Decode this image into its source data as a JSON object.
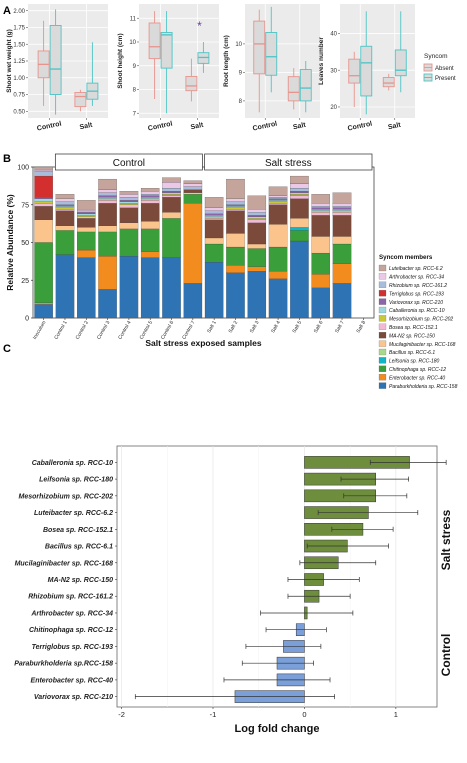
{
  "panel_labels": [
    "A",
    "B",
    "C"
  ],
  "panel_a": {
    "legend_title": "Syncom",
    "legend_items": [
      "Absent",
      "Present"
    ],
    "colors": {
      "absent": "#E8938C",
      "present": "#4DC4C4",
      "bg": "#EBEBEB"
    },
    "groups": [
      "Control",
      "Salt"
    ],
    "plots": [
      {
        "ylabel": "Shoot wet weight (g)",
        "yticks": [
          "0.50",
          "0.75",
          "1.00",
          "1.25",
          "1.50",
          "1.75",
          "2.00"
        ],
        "ylim": [
          0.4,
          2.1
        ],
        "boxes": [
          {
            "q1": 1.0,
            "med": 1.2,
            "q3": 1.4,
            "lo": 0.58,
            "hi": 1.85
          },
          {
            "q1": 0.75,
            "med": 1.13,
            "q3": 1.78,
            "lo": 0.45,
            "hi": 2.02
          },
          {
            "q1": 0.57,
            "med": 0.72,
            "q3": 0.78,
            "lo": 0.5,
            "hi": 0.82
          },
          {
            "q1": 0.68,
            "med": 0.8,
            "q3": 0.92,
            "lo": 0.58,
            "hi": 1.53
          }
        ],
        "star": null
      },
      {
        "ylabel": "Shoot height (cm)",
        "yticks": [
          "7",
          "8",
          "9",
          "10",
          "11"
        ],
        "ylim": [
          6.8,
          11.6
        ],
        "boxes": [
          {
            "q1": 9.3,
            "med": 9.8,
            "q3": 10.8,
            "lo": 7.6,
            "hi": 11.3
          },
          {
            "q1": 8.9,
            "med": 10.3,
            "q3": 10.4,
            "lo": 7.0,
            "hi": 11.3
          },
          {
            "q1": 7.95,
            "med": 8.15,
            "q3": 8.55,
            "lo": 7.5,
            "hi": 9.3
          },
          {
            "q1": 9.1,
            "med": 9.35,
            "q3": 9.55,
            "lo": 8.7,
            "hi": 10.0
          }
        ],
        "star": "*"
      },
      {
        "ylabel": "Root length (cm)",
        "yticks": [
          "8",
          "9",
          "10"
        ],
        "ylim": [
          7.4,
          11.4
        ],
        "boxes": [
          {
            "q1": 8.95,
            "med": 10.0,
            "q3": 10.8,
            "lo": 7.6,
            "hi": 11.2
          },
          {
            "q1": 8.9,
            "med": 9.55,
            "q3": 10.4,
            "lo": 8.3,
            "hi": 11.3
          },
          {
            "q1": 8.0,
            "med": 8.3,
            "q3": 8.85,
            "lo": 7.7,
            "hi": 9.15
          },
          {
            "q1": 8.0,
            "med": 8.45,
            "q3": 9.1,
            "lo": 7.6,
            "hi": 9.4
          }
        ],
        "star": null
      },
      {
        "ylabel": "Leaves number",
        "yticks": [
          "20",
          "30",
          "40"
        ],
        "ylim": [
          17,
          48
        ],
        "boxes": [
          {
            "q1": 26.5,
            "med": 28.5,
            "q3": 33,
            "lo": 20,
            "hi": 35
          },
          {
            "q1": 23,
            "med": 32,
            "q3": 36.5,
            "lo": 18,
            "hi": 46
          },
          {
            "q1": 25.5,
            "med": 26.5,
            "q3": 28,
            "lo": 24.5,
            "hi": 29
          },
          {
            "q1": 28.5,
            "med": 30,
            "q3": 35.5,
            "lo": 24,
            "hi": 46
          }
        ],
        "star": null
      }
    ]
  },
  "chart_data": {
    "type": "bar",
    "ylabel": "Relative Abundance (%)",
    "xlabel": "Salt stress exposed samples",
    "yticks": [
      "0",
      "25",
      "50",
      "75",
      "100"
    ],
    "ylim": [
      0,
      100
    ],
    "group_labels": [
      "Control",
      "Salt stress"
    ],
    "categories": [
      "Inoculum",
      "Control 1",
      "Control 2",
      "Control 3",
      "Control 4",
      "Control 5",
      "Control 6",
      "Control 7",
      "Salt 1",
      "Salt 2",
      "Salt 3",
      "Salt 4",
      "Salt 5",
      "Salt 6",
      "Salt 7",
      "Salt 8"
    ],
    "legend_title": "Syncom members",
    "series": [
      {
        "name": "Paraburkholderia sp. RCC-158",
        "color": "#2E74B5",
        "values": [
          9,
          42,
          40,
          19,
          41,
          40,
          40,
          23,
          37,
          30,
          31,
          26,
          51,
          20,
          23,
          0
        ]
      },
      {
        "name": "Enterobacter sp. RCC-40",
        "color": "#F28C1E",
        "values": [
          1,
          0,
          5,
          22,
          0,
          4,
          0,
          53,
          0,
          5,
          3,
          5,
          0,
          9,
          13,
          0
        ]
      },
      {
        "name": "Chitinophaga sp. RCC-12",
        "color": "#3A9E3A",
        "values": [
          40,
          16,
          12,
          16,
          18,
          15,
          26,
          6,
          12,
          12,
          12,
          16,
          7,
          14,
          13,
          0
        ]
      },
      {
        "name": "Leifsonia sp. RCC-180",
        "color": "#12B4C8",
        "values": [
          0,
          0,
          0,
          0,
          0,
          0,
          0,
          0,
          0,
          0,
          0,
          0,
          2,
          0,
          0,
          0
        ]
      },
      {
        "name": "Bacillus sp. RCC-6.1",
        "color": "#A8D98A",
        "values": [
          0,
          0,
          0,
          0,
          0,
          0,
          0,
          0,
          0,
          0,
          0,
          0,
          0,
          0,
          0,
          0
        ]
      },
      {
        "name": "Mucilaginibacter sp. RCC-168",
        "color": "#FBC48C",
        "values": [
          15,
          3,
          3,
          4,
          4,
          5,
          4,
          1,
          4,
          9,
          3,
          15,
          6,
          11,
          5,
          0
        ]
      },
      {
        "name": "MA-N2 sp. RCC-150",
        "color": "#7B4A3A",
        "values": [
          9,
          10,
          6,
          15,
          10,
          12,
          10,
          2,
          12,
          15,
          14,
          13,
          13,
          14,
          14,
          0
        ]
      },
      {
        "name": "Bosea sp. RCC-152.1",
        "color": "#F2B9D2",
        "values": [
          2,
          1,
          1,
          2,
          2,
          2,
          1,
          0,
          1,
          1,
          2,
          1,
          2,
          2,
          2,
          0
        ]
      },
      {
        "name": "Mesorhizobium sp. RCC-202",
        "color": "#C9C83A",
        "values": [
          1,
          1,
          1,
          1,
          1,
          1,
          1,
          0,
          1,
          1,
          1,
          1,
          1,
          1,
          1,
          0
        ]
      },
      {
        "name": "Caballeronia sp. RCC-10",
        "color": "#9ED7DE",
        "values": [
          2,
          1,
          1,
          1,
          1,
          1,
          1,
          0,
          1,
          1,
          1,
          1,
          1,
          1,
          1,
          0
        ]
      },
      {
        "name": "Variovorax sp. RCC-210",
        "color": "#8C64A8",
        "values": [
          1,
          1,
          1,
          1,
          1,
          1,
          1,
          0,
          1,
          1,
          1,
          1,
          1,
          1,
          1,
          0
        ]
      },
      {
        "name": "Terriglobus sp. RCC-193",
        "color": "#D32F2F",
        "values": [
          14,
          0,
          0,
          0,
          0,
          0,
          0,
          0,
          0,
          0,
          0,
          0,
          0,
          0,
          0,
          0
        ]
      },
      {
        "name": "Rhizobium sp. RCC-161.2",
        "color": "#A8BDDC",
        "values": [
          3,
          2,
          1,
          2,
          2,
          1,
          2,
          2,
          2,
          2,
          2,
          1,
          2,
          1,
          1,
          0
        ]
      },
      {
        "name": "Arthrobacter sp. RCC-34",
        "color": "#EAC8E6",
        "values": [
          1,
          2,
          1,
          2,
          2,
          2,
          4,
          2,
          2,
          2,
          2,
          1,
          3,
          2,
          2,
          0
        ]
      },
      {
        "name": "Luteibacter sp. RCC-6.2",
        "color": "#C4A49B",
        "values": [
          2,
          3,
          6,
          7,
          2,
          2,
          3,
          2,
          7,
          13,
          9,
          6,
          5,
          6,
          7,
          0
        ]
      }
    ]
  },
  "panel_c": {
    "type": "bar",
    "xlabel": "Log fold change",
    "xticks": [
      "-2",
      "-1",
      "0",
      "1"
    ],
    "xlim": [
      -2.05,
      1.45
    ],
    "side_labels": [
      "Salt stress",
      "Control"
    ],
    "colors": {
      "positive": "#6E8E3E",
      "negative": "#7B9FD8"
    },
    "bars": [
      {
        "label": "Caballeronia sp. RCC-10",
        "value": 1.15,
        "lo": 0.72,
        "hi": 1.55
      },
      {
        "label": "Leifsonia sp. RCC-180",
        "value": 0.78,
        "lo": 0.4,
        "hi": 1.14
      },
      {
        "label": "Mesorhizobium sp. RCC-202",
        "value": 0.78,
        "lo": 0.43,
        "hi": 1.12
      },
      {
        "label": "Luteibacter sp. RCC-6.2",
        "value": 0.7,
        "lo": 0.15,
        "hi": 1.24
      },
      {
        "label": "Bosea sp. RCC-152.1",
        "value": 0.64,
        "lo": 0.3,
        "hi": 0.97
      },
      {
        "label": "Bacillus sp. RCC-6.1",
        "value": 0.47,
        "lo": 0.03,
        "hi": 0.92
      },
      {
        "label": "Mucilaginibacter sp. RCC-168",
        "value": 0.37,
        "lo": -0.05,
        "hi": 0.78
      },
      {
        "label": "MA-N2 sp. RCC-150",
        "value": 0.21,
        "lo": -0.18,
        "hi": 0.6
      },
      {
        "label": "Rhizobium sp. RCC-161.2",
        "value": 0.16,
        "lo": -0.18,
        "hi": 0.5
      },
      {
        "label": "Arthrobacter sp. RCC-34",
        "value": 0.03,
        "lo": -0.48,
        "hi": 0.53
      },
      {
        "label": "Chitinophaga sp. RCC-12",
        "value": -0.09,
        "lo": -0.42,
        "hi": 0.24
      },
      {
        "label": "Terriglobus sp. RCC-193",
        "value": -0.23,
        "lo": -0.64,
        "hi": 0.18
      },
      {
        "label": "Paraburkholderia sp.RCC-158",
        "value": -0.3,
        "lo": -0.68,
        "hi": 0.1
      },
      {
        "label": "Enterobacter sp. RCC-40",
        "value": -0.3,
        "lo": -0.88,
        "hi": 0.28
      },
      {
        "label": "Variovorax sp. RCC-210",
        "value": -0.76,
        "lo": -1.85,
        "hi": 0.33
      }
    ]
  }
}
